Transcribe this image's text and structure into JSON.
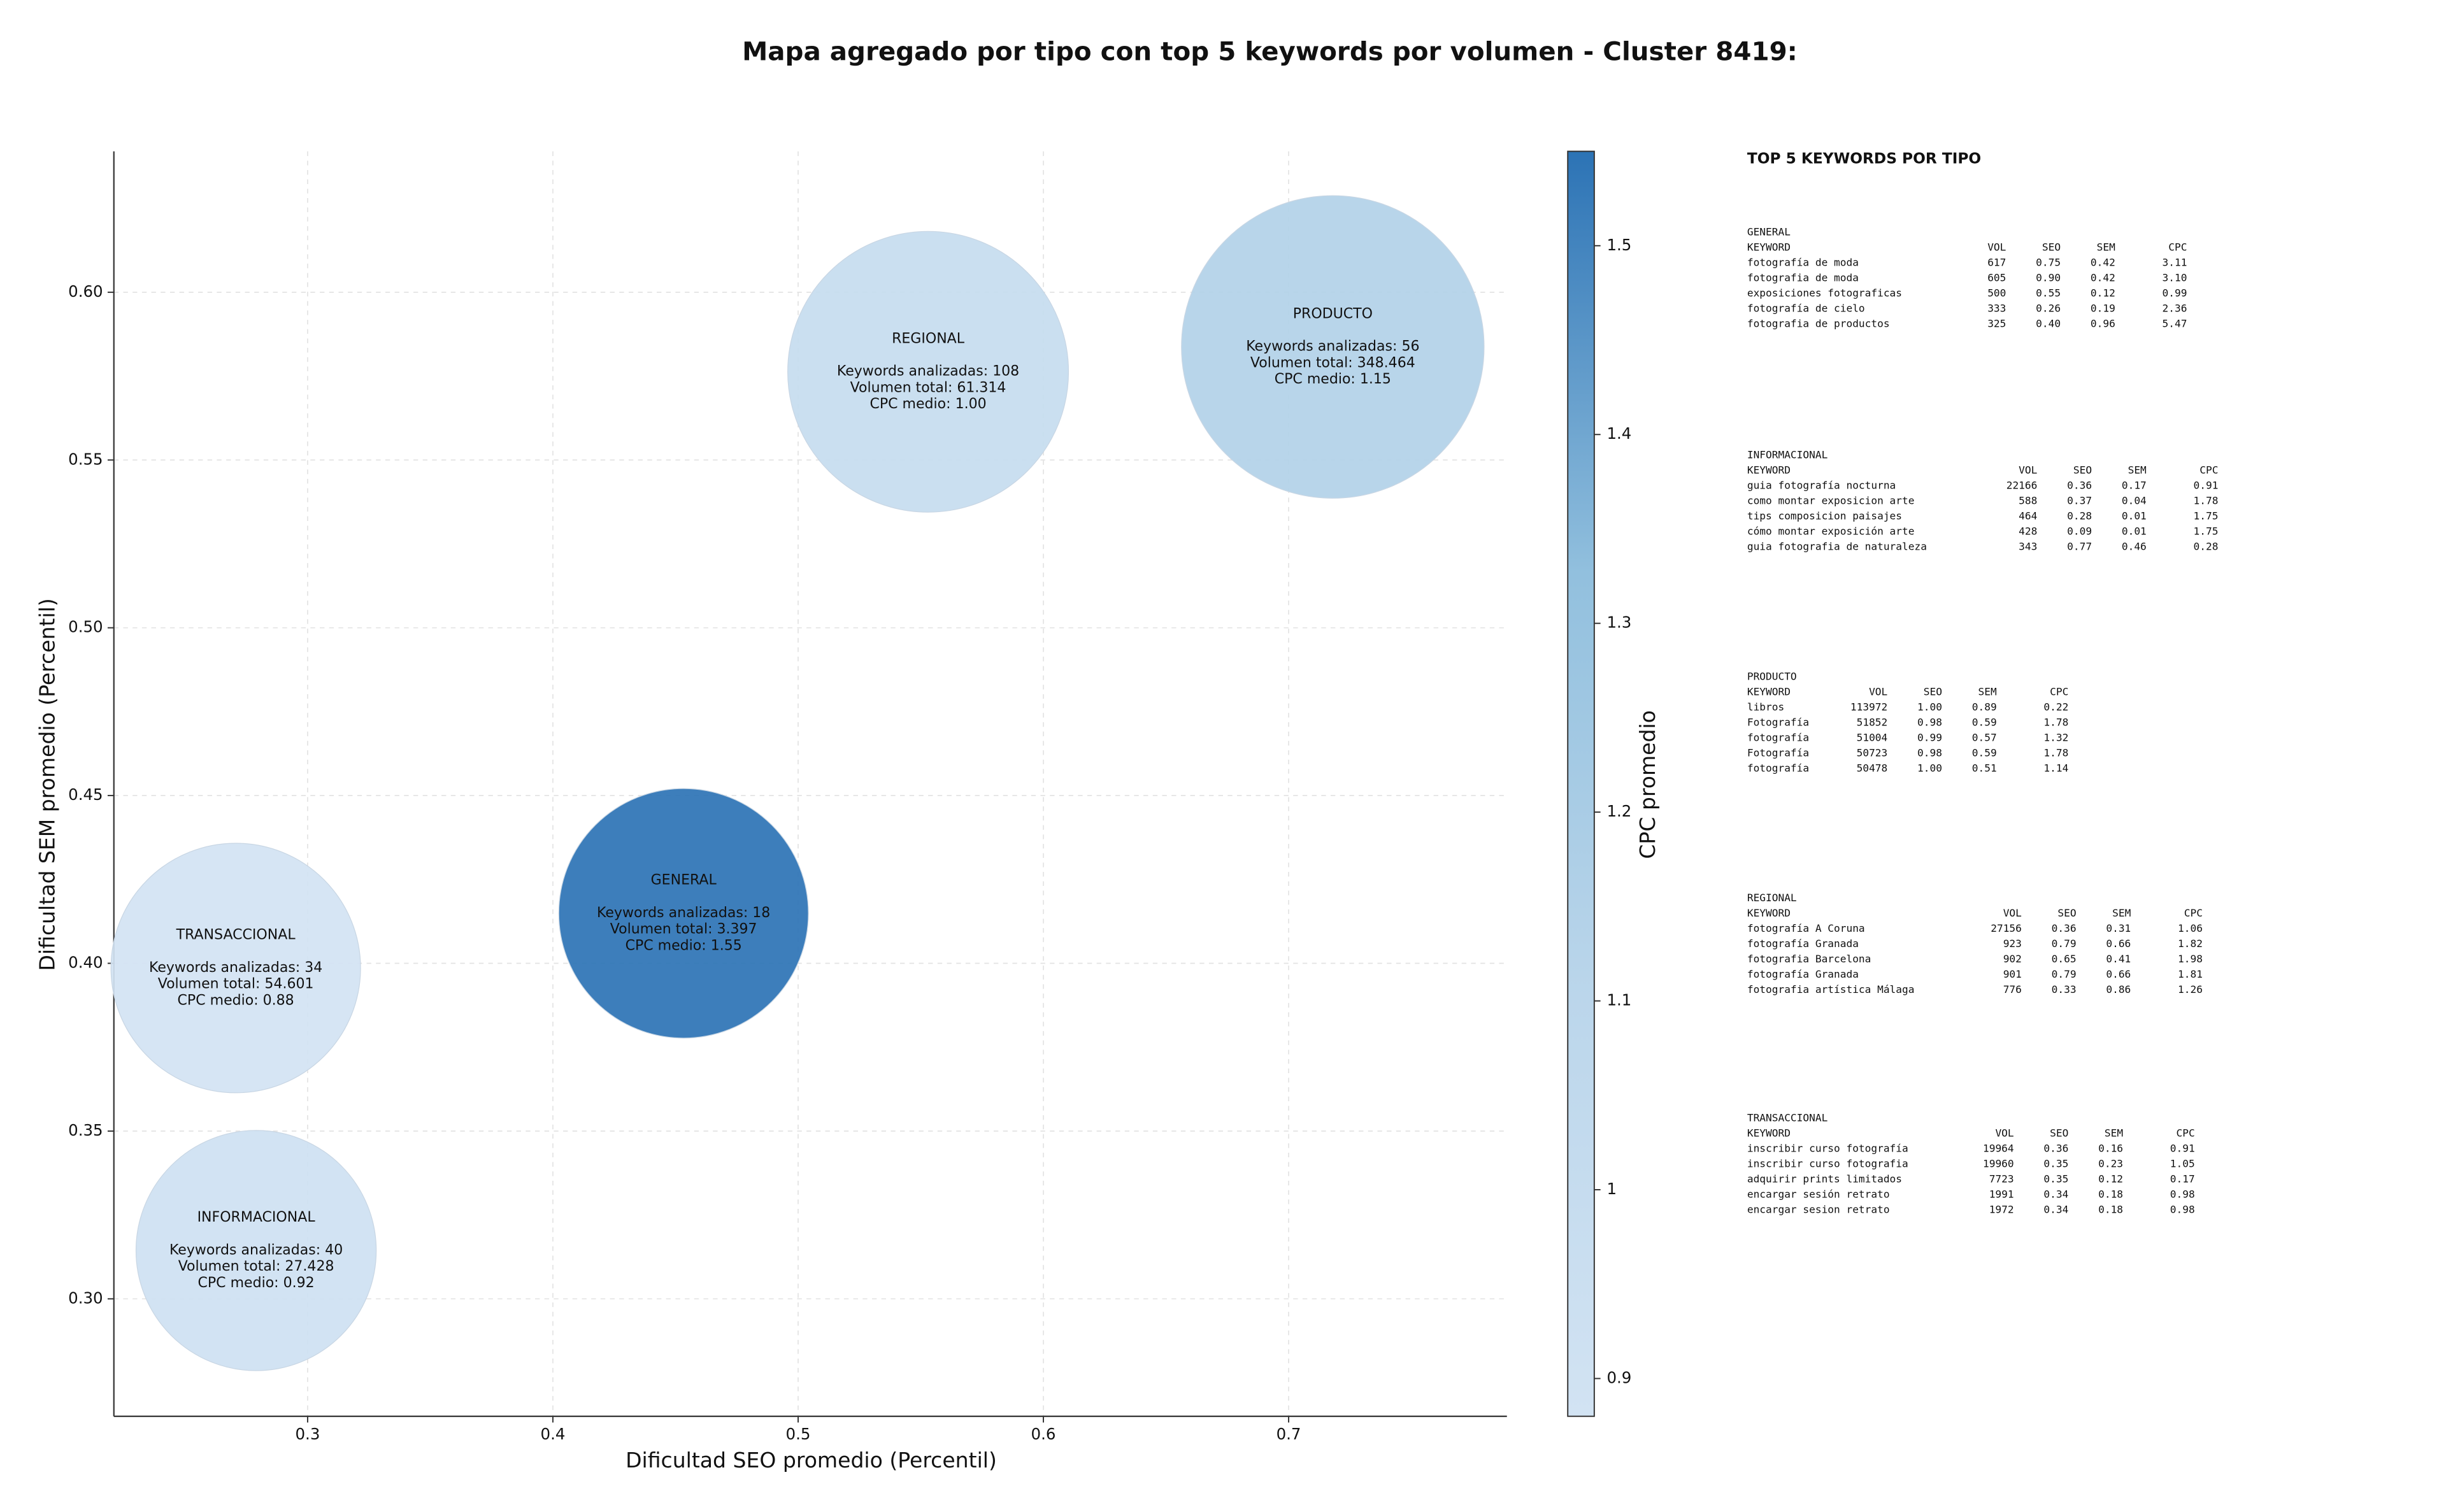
{
  "chart_data": {
    "type": "bubble",
    "title": "Mapa agregado por tipo con top 5 keywords por volumen - Cluster 8419:",
    "x_label": "Dificultad SEO promedio (Percentil)",
    "y_label": "Dificultad SEM promedio (Percentil)",
    "xlim": [
      0.221,
      0.789
    ],
    "ylim": [
      0.265,
      0.642
    ],
    "xticks": [
      0.3,
      0.4,
      0.5,
      0.6,
      0.7
    ],
    "yticks": [
      {
        "value": 0.3,
        "label": "0.30"
      },
      {
        "value": 0.35,
        "label": "0.35"
      },
      {
        "value": 0.4,
        "label": "0.40"
      },
      {
        "value": 0.45,
        "label": "0.45"
      },
      {
        "value": 0.5,
        "label": "0.50"
      },
      {
        "value": 0.55,
        "label": "0.55"
      },
      {
        "value": 0.6,
        "label": "0.60"
      }
    ],
    "grid": true,
    "categories": [
      "GENERAL",
      "REGIONAL",
      "PRODUCTO",
      "TRANSACCIONAL",
      "INFORMACIONAL"
    ],
    "x": [
      0.4533,
      0.553,
      0.718,
      0.2707,
      0.279
    ],
    "values": [
      0.4149,
      0.5763,
      0.5837,
      0.3986,
      0.3144
    ],
    "sizes": [
      6400,
      8100,
      9409,
      6400,
      5929
    ],
    "color_values": [
      1.55,
      1.0,
      1.15,
      0.88,
      0.92
    ],
    "annotations": [
      [
        "Keywords analizadas: 18",
        "Volumen total: 3.397",
        "CPC medio: 1.55"
      ],
      [
        "Keywords analizadas: 108",
        "Volumen total: 61.314",
        "CPC medio: 1.00"
      ],
      [
        "Keywords analizadas: 56",
        "Volumen total: 348.464",
        "CPC medio: 1.15"
      ],
      [
        "Keywords analizadas: 34",
        "Volumen total: 54.601",
        "CPC medio: 0.88"
      ],
      [
        "Keywords analizadas: 40",
        "Volumen total: 27.428",
        "CPC medio: 0.92"
      ]
    ],
    "colorbar": {
      "label": "CPC promedio",
      "lim": [
        0.88,
        1.55
      ],
      "ticks": [
        0.9,
        1.0,
        1.1,
        1.2,
        1.3,
        1.4,
        1.5
      ],
      "colormap": [
        "#d2e3f3",
        "#bbd6eb",
        "#92c0de",
        "#2c73b5"
      ]
    }
  },
  "side_panel": {
    "title": "TOP 5 KEYWORDS POR TIPO",
    "header": [
      "KEYWORD",
      "VOL",
      "SEO",
      "SEM",
      "CPC"
    ],
    "blocks": [
      {
        "name": "GENERAL",
        "rows": [
          [
            "fotografía de moda",
            "617",
            "0.75",
            "0.42",
            "3.11"
          ],
          [
            "fotografia de moda",
            "605",
            "0.90",
            "0.42",
            "3.10"
          ],
          [
            "exposiciones fotograficas",
            "500",
            "0.55",
            "0.12",
            "0.99"
          ],
          [
            "fotografía de cielo",
            "333",
            "0.26",
            "0.19",
            "2.36"
          ],
          [
            "fotografia de productos",
            "325",
            "0.40",
            "0.96",
            "5.47"
          ]
        ]
      },
      {
        "name": "INFORMACIONAL",
        "rows": [
          [
            "guia fotografía nocturna",
            "22166",
            "0.36",
            "0.17",
            "0.91"
          ],
          [
            "como montar exposicion arte",
            "588",
            "0.37",
            "0.04",
            "1.78"
          ],
          [
            "tips composicion paisajes",
            "464",
            "0.28",
            "0.01",
            "1.75"
          ],
          [
            "cómo montar exposición arte",
            "428",
            "0.09",
            "0.01",
            "1.75"
          ],
          [
            "guia fotografia de naturaleza",
            "343",
            "0.77",
            "0.46",
            "0.28"
          ]
        ]
      },
      {
        "name": "PRODUCTO",
        "rows": [
          [
            "libros",
            "113972",
            "1.00",
            "0.89",
            "0.22"
          ],
          [
            "Fotografía",
            "51852",
            "0.98",
            "0.59",
            "1.78"
          ],
          [
            "fotografía",
            "51004",
            "0.99",
            "0.57",
            "1.32"
          ],
          [
            "Fotografía",
            "50723",
            "0.98",
            "0.59",
            "1.78"
          ],
          [
            "fotografía",
            "50478",
            "1.00",
            "0.51",
            "1.14"
          ]
        ]
      },
      {
        "name": "REGIONAL",
        "rows": [
          [
            "fotografía A Coruna",
            "27156",
            "0.36",
            "0.31",
            "1.06"
          ],
          [
            "fotografía Granada",
            "923",
            "0.79",
            "0.66",
            "1.82"
          ],
          [
            "fotografia Barcelona",
            "902",
            "0.65",
            "0.41",
            "1.98"
          ],
          [
            "fotografía Granada",
            "901",
            "0.79",
            "0.66",
            "1.81"
          ],
          [
            "fotografia artística Málaga",
            "776",
            "0.33",
            "0.86",
            "1.26"
          ]
        ]
      },
      {
        "name": "TRANSACCIONAL",
        "rows": [
          [
            "inscribir curso fotografía",
            "19964",
            "0.36",
            "0.16",
            "0.91"
          ],
          [
            "inscribir curso fotografia",
            "19960",
            "0.35",
            "0.23",
            "1.05"
          ],
          [
            "adquirir prints limitados",
            "7723",
            "0.35",
            "0.12",
            "0.17"
          ],
          [
            "encargar sesión retrato",
            "1991",
            "0.34",
            "0.18",
            "0.98"
          ],
          [
            "encargar sesion retrato",
            "1972",
            "0.34",
            "0.18",
            "0.98"
          ]
        ]
      }
    ]
  }
}
